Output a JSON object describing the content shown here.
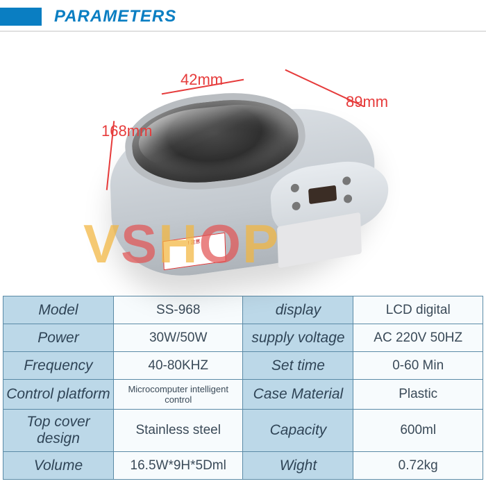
{
  "header": {
    "title": "PARAMETERS"
  },
  "dimensions": {
    "depth": "42mm",
    "width": "89mm",
    "length": "168mm",
    "color": "#e63b3b",
    "fontsize": 22
  },
  "watermark": {
    "text": "VSHOP",
    "colors": [
      "#f3b63f",
      "#e25555",
      "#f3b63f",
      "#e25555",
      "#f3b63f"
    ],
    "opacity": 0.72,
    "fontsize": 78
  },
  "table": {
    "label_bg": "#bcd8e8",
    "value_bg": "#f7fbfd",
    "border_color": "#5a8aa6",
    "text_color": "#3a4a58",
    "label_fontsize": 21,
    "value_fontsize": 19,
    "rows": [
      {
        "l1": "Model",
        "v1": "SS-968",
        "l2": "display",
        "v2": "LCD digital"
      },
      {
        "l1": "Power",
        "v1": "30W/50W",
        "l2": "supply voltage",
        "v2": "AC 220V 50HZ"
      },
      {
        "l1": "Frequency",
        "v1": "40-80KHZ",
        "l2": "Set time",
        "v2": "0-60 Min"
      },
      {
        "l1": "Control platform",
        "v1": "Microcomputer intelligent control",
        "l2": "Case Material",
        "v2": "Plastic"
      },
      {
        "l1": "Top cover design",
        "v1": "Stainless steel",
        "l2": "Capacity",
        "v2": "600ml"
      },
      {
        "l1": "Volume",
        "v1": "16.5W*9H*5Dml",
        "l2": "Wight",
        "v2": "0.72kg"
      }
    ]
  }
}
